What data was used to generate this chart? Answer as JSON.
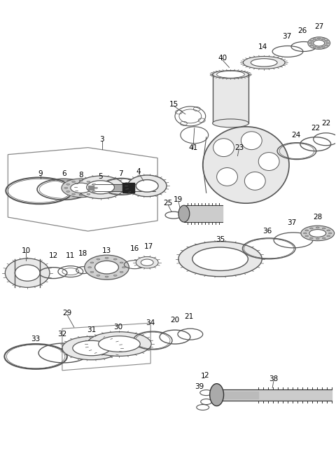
{
  "bg_color": "#ffffff",
  "line_color": "#555555",
  "dark_color": "#333333",
  "light_fill": "#e8e8e8",
  "mid_fill": "#d0d0d0"
}
